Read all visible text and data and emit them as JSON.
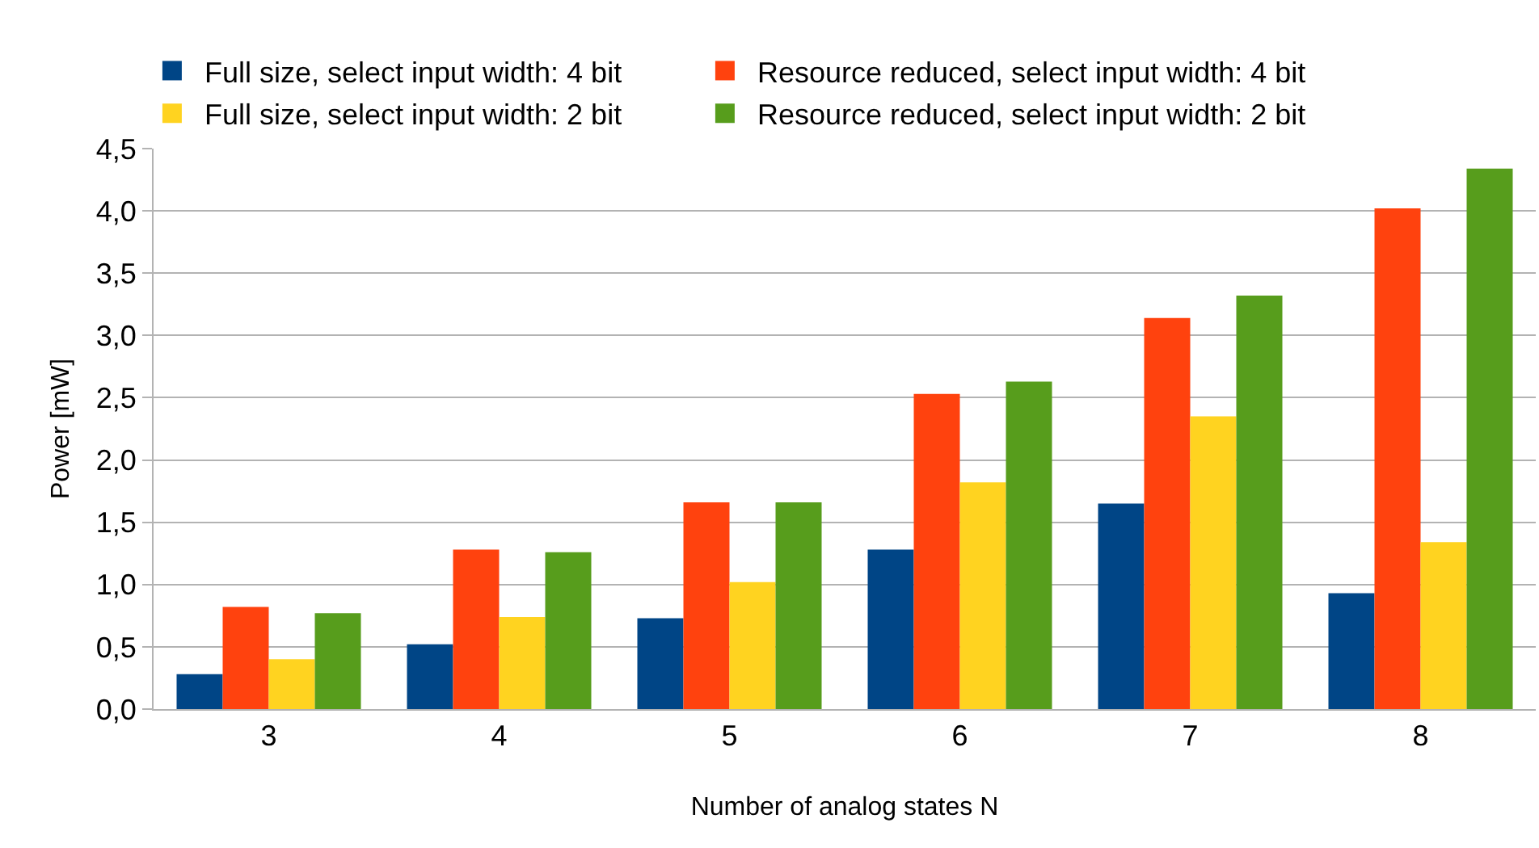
{
  "chart_data": {
    "type": "bar",
    "xlabel": "Number of analog states N",
    "ylabel": "Power [mW]",
    "categories": [
      "3",
      "4",
      "5",
      "6",
      "7",
      "8"
    ],
    "series": [
      {
        "name": "Full size, select input width: 4 bit",
        "color": "#004586",
        "values": [
          0.28,
          0.52,
          0.73,
          1.28,
          1.65,
          0.93
        ]
      },
      {
        "name": "Resource reduced, select input width: 4 bit",
        "color": "#ff420e",
        "values": [
          0.82,
          1.28,
          1.66,
          2.53,
          3.14,
          4.02
        ]
      },
      {
        "name": "Full size, select input width: 2 bit",
        "color": "#ffd320",
        "values": [
          0.4,
          0.74,
          1.02,
          1.82,
          2.35,
          1.34
        ]
      },
      {
        "name": "Resource reduced, select input width: 2 bit",
        "color": "#579d1c",
        "values": [
          0.77,
          1.26,
          1.66,
          2.63,
          3.32,
          4.34
        ]
      }
    ],
    "ylim": [
      0,
      4.5
    ],
    "yticks": [
      {
        "value": 0,
        "label": "0,0"
      },
      {
        "value": 0.5,
        "label": "0,5"
      },
      {
        "value": 1,
        "label": "1,0"
      },
      {
        "value": 1.5,
        "label": "1,5"
      },
      {
        "value": 2,
        "label": "2,0"
      },
      {
        "value": 2.5,
        "label": "2,5"
      },
      {
        "value": 3,
        "label": "3,0"
      },
      {
        "value": 3.5,
        "label": "3,5"
      },
      {
        "value": 4,
        "label": "4,0"
      },
      {
        "value": 4.5,
        "label": "4,5"
      }
    ],
    "grid": "y",
    "legend": "top"
  }
}
